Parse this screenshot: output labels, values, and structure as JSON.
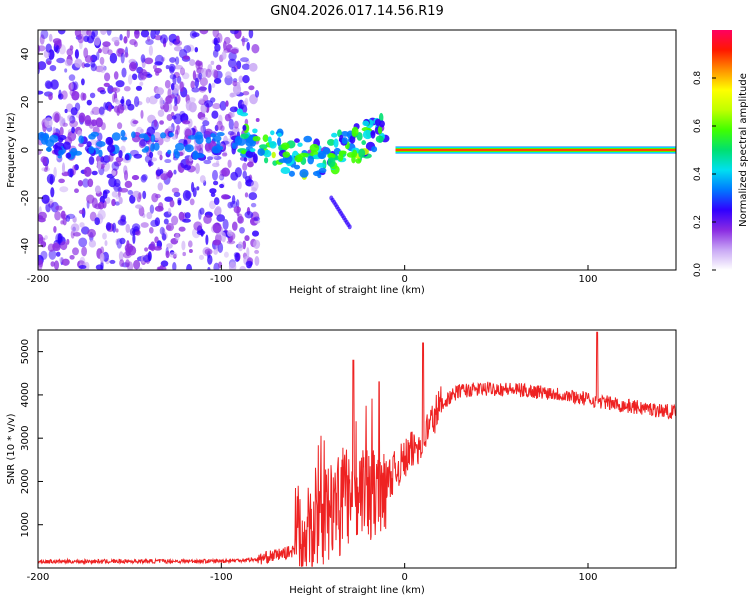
{
  "title": "GN04.2026.017.14.56.R19",
  "chart_data": [
    {
      "type": "heatmap",
      "id": "spectrogram",
      "xlabel": "Height of straight line (km)",
      "ylabel": "Frequency (Hz)",
      "xlim": [
        -200,
        148
      ],
      "ylim": [
        -50,
        50
      ],
      "xticks": [
        -200,
        -100,
        0,
        100
      ],
      "yticks": [
        -40,
        -20,
        0,
        20,
        40
      ],
      "colorbar": {
        "label": "Normalized spectral amplitude",
        "range": [
          0,
          1
        ],
        "ticks": [
          0,
          0.2,
          0.4,
          0.6,
          0.8
        ],
        "tick_labels": [
          "0.0",
          "0.2",
          "0.4",
          "0.6",
          "0.8"
        ],
        "colormap": [
          "#ffffff",
          "#c9a8f5",
          "#8a2be2",
          "#3000ff",
          "#0078ff",
          "#00e0f0",
          "#00e070",
          "#40ff00",
          "#c0ff00",
          "#ffff00",
          "#ff9000",
          "#ff1800",
          "#ff0060"
        ]
      },
      "regions": [
        {
          "name": "noise",
          "x": [
            -200,
            -80
          ],
          "y": [
            -50,
            50
          ],
          "amplitude": 0.25
        },
        {
          "name": "break-up",
          "x": [
            -90,
            -10
          ],
          "y": [
            -15,
            12
          ],
          "amplitude": 0.55
        },
        {
          "name": "descending trail",
          "x": [
            -40,
            -30
          ],
          "y": [
            -32,
            -20
          ],
          "amplitude": 0.3
        },
        {
          "name": "carrier",
          "x": [
            -5,
            148
          ],
          "y": [
            0,
            0
          ],
          "amplitude": 0.95
        }
      ]
    },
    {
      "type": "line",
      "id": "snr",
      "xlabel": "Height of straight line (km)",
      "ylabel": "SNR (10 * v/v)",
      "xlim": [
        -200,
        148
      ],
      "ylim": [
        0,
        5500
      ],
      "xticks": [
        -200,
        -100,
        0,
        100
      ],
      "yticks": [
        1000,
        2000,
        3000,
        4000,
        5000
      ],
      "color": "#ee2222",
      "profile": [
        {
          "x": -200,
          "y": 150
        },
        {
          "x": -100,
          "y": 160
        },
        {
          "x": -80,
          "y": 200
        },
        {
          "x": -60,
          "y": 400
        },
        {
          "x": -50,
          "y": 900
        },
        {
          "x": -40,
          "y": 1300
        },
        {
          "x": -30,
          "y": 1500
        },
        {
          "x": -20,
          "y": 1700
        },
        {
          "x": -10,
          "y": 2000
        },
        {
          "x": 0,
          "y": 2500
        },
        {
          "x": 10,
          "y": 3000
        },
        {
          "x": 20,
          "y": 3800
        },
        {
          "x": 30,
          "y": 4100
        },
        {
          "x": 50,
          "y": 4150
        },
        {
          "x": 80,
          "y": 4050
        },
        {
          "x": 100,
          "y": 3900
        },
        {
          "x": 120,
          "y": 3750
        },
        {
          "x": 148,
          "y": 3600
        }
      ],
      "spikes": [
        {
          "x": -28,
          "y": 4800
        },
        {
          "x": -14,
          "y": 4300
        },
        {
          "x": 10,
          "y": 5200
        },
        {
          "x": 105,
          "y": 5450
        }
      ]
    }
  ]
}
